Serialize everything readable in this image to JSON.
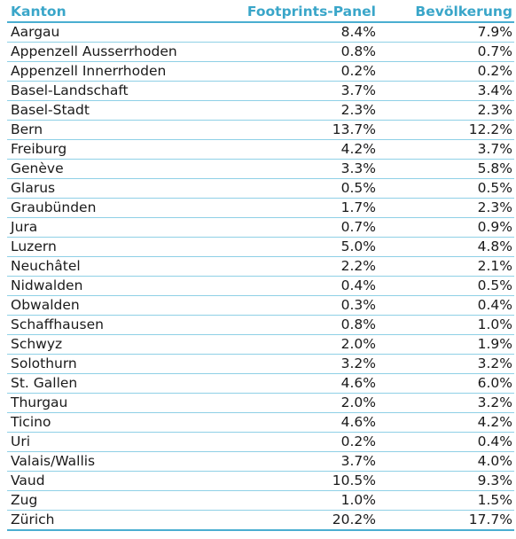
{
  "table": {
    "headers": [
      "Kanton",
      "Footprints-Panel",
      "Bevölkerung"
    ],
    "rows": [
      [
        "Aargau",
        "8.4%",
        "7.9%"
      ],
      [
        "Appenzell Ausserrhoden",
        "0.8%",
        "0.7%"
      ],
      [
        "Appenzell Innerrhoden",
        "0.2%",
        "0.2%"
      ],
      [
        "Basel-Landschaft",
        "3.7%",
        "3.4%"
      ],
      [
        "Basel-Stadt",
        "2.3%",
        "2.3%"
      ],
      [
        "Bern",
        "13.7%",
        "12.2%"
      ],
      [
        "Freiburg",
        "4.2%",
        "3.7%"
      ],
      [
        "Genève",
        "3.3%",
        "5.8%"
      ],
      [
        "Glarus",
        "0.5%",
        "0.5%"
      ],
      [
        "Graubünden",
        "1.7%",
        "2.3%"
      ],
      [
        "Jura",
        "0.7%",
        "0.9%"
      ],
      [
        "Luzern",
        "5.0%",
        "4.8%"
      ],
      [
        "Neuchâtel",
        "2.2%",
        "2.1%"
      ],
      [
        "Nidwalden",
        "0.4%",
        "0.5%"
      ],
      [
        "Obwalden",
        "0.3%",
        "0.4%"
      ],
      [
        "Schaffhausen",
        "0.8%",
        "1.0%"
      ],
      [
        "Schwyz",
        "2.0%",
        "1.9%"
      ],
      [
        "Solothurn",
        "3.2%",
        "3.2%"
      ],
      [
        "St. Gallen",
        "4.6%",
        "6.0%"
      ],
      [
        "Thurgau",
        "2.0%",
        "3.2%"
      ],
      [
        "Ticino",
        "4.6%",
        "4.2%"
      ],
      [
        "Uri",
        "0.2%",
        "0.4%"
      ],
      [
        "Valais/Wallis",
        "3.7%",
        "4.0%"
      ],
      [
        "Vaud",
        "10.5%",
        "9.3%"
      ],
      [
        "Zug",
        "1.0%",
        "1.5%"
      ],
      [
        "Zürich",
        "20.2%",
        "17.7%"
      ]
    ]
  },
  "colors": {
    "header_text": "#3aa6c9",
    "rule_strong": "#4aaed1",
    "rule_light": "#8fd0e6"
  }
}
